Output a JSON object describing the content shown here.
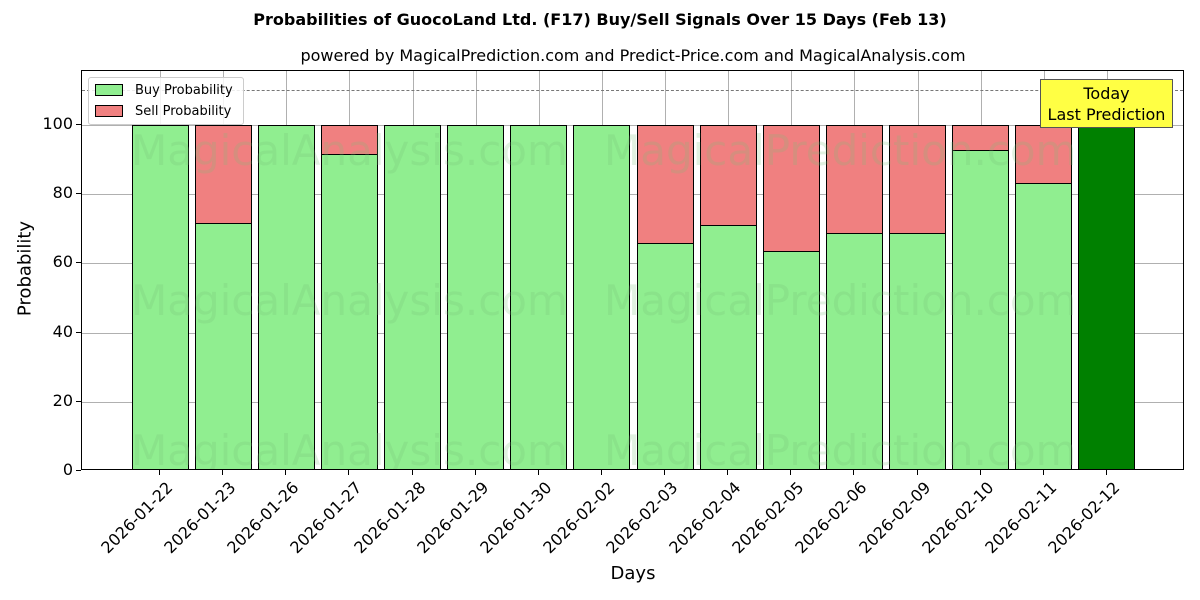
{
  "header": {
    "title": "Probabilities of GuocoLand Ltd. (F17) Buy/Sell Signals Over 15 Days (Feb 13)",
    "subtitle": "powered by MagicalPrediction.com and Predict-Price.com and MagicalAnalysis.com"
  },
  "axes": {
    "xlabel": "Days",
    "ylabel": "Probability",
    "yticks": [
      "0",
      "20",
      "40",
      "60",
      "80",
      "100"
    ]
  },
  "legend": {
    "buy": "Buy Probability",
    "sell": "Sell Probability"
  },
  "annotation": {
    "line1": "Today",
    "line2": "Last Prediction"
  },
  "watermarks": [
    "MagicalAnalysis.com",
    "MagicalPrediction.com"
  ],
  "colors": {
    "buy": "#90ee90",
    "sell": "#f08080",
    "today": "#008000",
    "annotation_bg": "#ffff44"
  },
  "chart_data": {
    "type": "bar",
    "stacked": true,
    "title": "Probabilities of GuocoLand Ltd. (F17) Buy/Sell Signals Over 15 Days (Feb 13)",
    "subtitle": "powered by MagicalPrediction.com and Predict-Price.com and MagicalAnalysis.com",
    "xlabel": "Days",
    "ylabel": "Probability",
    "ylim": [
      0,
      115
    ],
    "yticks": [
      0,
      20,
      40,
      60,
      80,
      100
    ],
    "grid": true,
    "legend_position": "upper left",
    "reference_line": {
      "y": 110,
      "style": "dashed"
    },
    "categories": [
      "2026-01-22",
      "2026-01-23",
      "2026-01-26",
      "2026-01-27",
      "2026-01-28",
      "2026-01-29",
      "2026-01-30",
      "2026-02-02",
      "2026-02-03",
      "2026-02-04",
      "2026-02-05",
      "2026-02-06",
      "2026-02-09",
      "2026-02-10",
      "2026-02-11",
      "2026-02-12"
    ],
    "series": [
      {
        "name": "Buy Probability",
        "values": [
          100,
          71.6,
          100,
          91.5,
          100,
          100,
          100,
          100,
          66.0,
          71.2,
          63.7,
          68.9,
          68.8,
          92.7,
          83.1,
          100
        ]
      },
      {
        "name": "Sell Probability",
        "values": [
          0,
          28.4,
          0,
          8.5,
          0,
          0,
          0,
          0,
          34.0,
          28.8,
          36.3,
          31.1,
          31.2,
          7.3,
          16.9,
          0
        ]
      }
    ],
    "highlight": {
      "category": "2026-02-12",
      "label": "Today Last Prediction",
      "color": "#008000"
    }
  }
}
